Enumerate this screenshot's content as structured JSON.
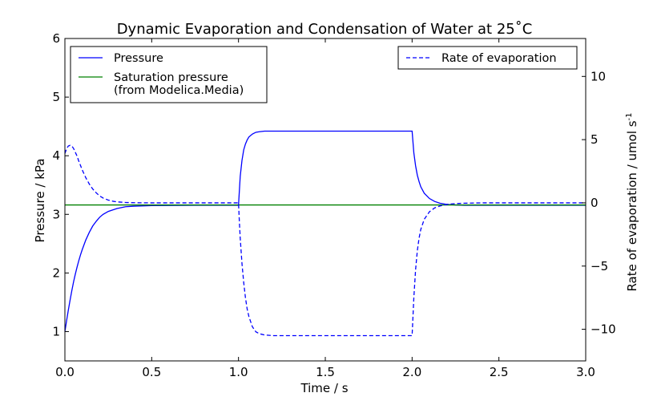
{
  "chart_data": {
    "type": "line",
    "title": "Dynamic Evaporation and Condensation of Water at 25˚C",
    "xlabel": "Time / s",
    "ylabel": "Pressure / kPa",
    "y2label": "Rate of evaporation / umol s",
    "y2label_superscript": "-1",
    "xlim": [
      0,
      3
    ],
    "ylim": [
      0.5,
      6
    ],
    "y2lim": [
      -12.5,
      13
    ],
    "x_ticks": [
      {
        "value": 0,
        "label": "0.0"
      },
      {
        "value": 0.5,
        "label": "0.5"
      },
      {
        "value": 1,
        "label": "1.0"
      },
      {
        "value": 1.5,
        "label": "1.5"
      },
      {
        "value": 2,
        "label": "2.0"
      },
      {
        "value": 2.5,
        "label": "2.5"
      },
      {
        "value": 3,
        "label": "3.0"
      }
    ],
    "y_ticks": [
      {
        "value": 1,
        "label": "1"
      },
      {
        "value": 2,
        "label": "2"
      },
      {
        "value": 3,
        "label": "3"
      },
      {
        "value": 4,
        "label": "4"
      },
      {
        "value": 5,
        "label": "5"
      },
      {
        "value": 6,
        "label": "6"
      }
    ],
    "y2_ticks": [
      {
        "value": -10,
        "label": "−10"
      },
      {
        "value": -5,
        "label": "−5"
      },
      {
        "value": 0,
        "label": "0"
      },
      {
        "value": 5,
        "label": "5"
      },
      {
        "value": 10,
        "label": "10"
      }
    ],
    "grid": false,
    "legends": [
      {
        "placement": "top-left",
        "entries": [
          {
            "series": 0,
            "lines": [
              "Pressure"
            ]
          },
          {
            "series": 1,
            "lines": [
              "Saturation pressure",
              "(from Modelica.Media)"
            ]
          }
        ]
      },
      {
        "placement": "top-right",
        "entries": [
          {
            "series": 2,
            "lines": [
              "Rate of evaporation"
            ]
          }
        ]
      }
    ],
    "series": [
      {
        "name": "Pressure",
        "axis": "left",
        "color": "#0000ff",
        "style": "solid",
        "x": [
          0,
          0.01,
          0.02,
          0.03,
          0.04,
          0.05,
          0.06,
          0.07,
          0.08,
          0.09,
          0.1,
          0.12,
          0.14,
          0.16,
          0.18,
          0.2,
          0.22,
          0.25,
          0.3,
          0.35,
          0.4,
          0.5,
          0.75,
          1.0,
          1.01,
          1.02,
          1.03,
          1.04,
          1.05,
          1.06,
          1.08,
          1.1,
          1.12,
          1.15,
          1.2,
          1.3,
          1.5,
          1.75,
          2.0,
          2.01,
          2.02,
          2.03,
          2.04,
          2.05,
          2.07,
          2.1,
          2.13,
          2.16,
          2.2,
          2.25,
          2.3,
          2.4,
          3.0
        ],
        "y": [
          1.0,
          1.19,
          1.37,
          1.54,
          1.7,
          1.85,
          1.98,
          2.1,
          2.21,
          2.31,
          2.4,
          2.56,
          2.69,
          2.8,
          2.88,
          2.95,
          3.0,
          3.05,
          3.1,
          3.13,
          3.14,
          3.15,
          3.155,
          3.155,
          3.65,
          3.92,
          4.1,
          4.2,
          4.27,
          4.32,
          4.37,
          4.4,
          4.41,
          4.42,
          4.42,
          4.42,
          4.42,
          4.42,
          4.42,
          4.05,
          3.83,
          3.67,
          3.56,
          3.47,
          3.36,
          3.27,
          3.22,
          3.19,
          3.17,
          3.16,
          3.155,
          3.155,
          3.155
        ]
      },
      {
        "name": "Saturation pressure (from Modelica.Media)",
        "axis": "left",
        "color": "#008000",
        "style": "solid",
        "x": [
          0,
          3.0
        ],
        "y": [
          3.16,
          3.16
        ]
      },
      {
        "name": "Rate of evaporation",
        "axis": "right",
        "color": "#0000ff",
        "style": "dashed",
        "x": [
          0,
          0.01,
          0.02,
          0.03,
          0.04,
          0.05,
          0.06,
          0.07,
          0.08,
          0.1,
          0.12,
          0.14,
          0.16,
          0.18,
          0.2,
          0.22,
          0.25,
          0.28,
          0.3,
          0.35,
          0.4,
          0.5,
          0.75,
          1.0,
          1.005,
          1.01,
          1.02,
          1.03,
          1.04,
          1.05,
          1.06,
          1.08,
          1.1,
          1.12,
          1.15,
          1.2,
          1.3,
          1.5,
          2.0,
          2.005,
          2.01,
          2.02,
          2.03,
          2.04,
          2.05,
          2.07,
          2.1,
          2.13,
          2.16,
          2.2,
          2.25,
          2.3,
          2.4,
          3.0
        ],
        "y": [
          3.9,
          4.3,
          4.5,
          4.55,
          4.5,
          4.3,
          4.0,
          3.7,
          3.3,
          2.6,
          2.0,
          1.5,
          1.1,
          0.8,
          0.55,
          0.38,
          0.22,
          0.12,
          0.08,
          0.03,
          0.01,
          0.0,
          0.0,
          0.0,
          -1.5,
          -2.8,
          -4.8,
          -6.3,
          -7.5,
          -8.4,
          -9.0,
          -9.8,
          -10.2,
          -10.35,
          -10.45,
          -10.5,
          -10.5,
          -10.5,
          -10.5,
          -9.0,
          -7.5,
          -5.3,
          -3.8,
          -2.8,
          -2.1,
          -1.3,
          -0.7,
          -0.4,
          -0.25,
          -0.12,
          -0.06,
          -0.03,
          0.0,
          0.0
        ]
      }
    ]
  }
}
